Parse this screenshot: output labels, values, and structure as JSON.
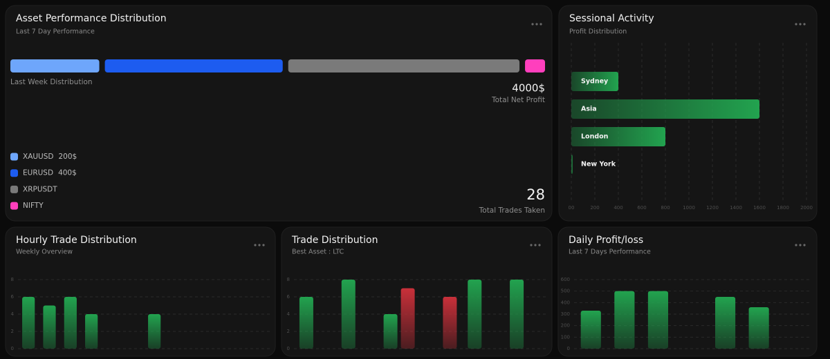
{
  "chart_data": [
    {
      "type": "segmented-bar",
      "title": "Asset Performance Distribution",
      "subtitle": "Last 7 Day Performance",
      "bar_label": "Last Week Distribution",
      "categories": [
        "XAUUSD",
        "EURUSD",
        "XRPUSDT",
        "NIFTY"
      ],
      "values": [
        200,
        400,
        520,
        45
      ],
      "value_labels": [
        "200$",
        "400$",
        null,
        null
      ],
      "colors": [
        "#6ea6fb",
        "#1d5cf0",
        "#7a7a7a",
        "#ff3fbd"
      ],
      "net_profit": {
        "value": 4000,
        "label": "4000$"
      },
      "net_profit_label": "Total Net Profit",
      "trades": 28,
      "trades_label": "Total Trades Taken"
    },
    {
      "type": "hbar",
      "title": "Sessional Activity",
      "subtitle": "Profit Distribution",
      "categories": [
        "Sydney",
        "Asia",
        "London",
        "New York"
      ],
      "values": [
        400,
        1600,
        800,
        10
      ],
      "color": "#22a34f",
      "xlim": [
        0,
        2000
      ],
      "xticks": [
        {
          "value": 0,
          "label": "00"
        },
        200,
        400,
        600,
        800,
        1000,
        1200,
        1400,
        1600,
        1800,
        2000
      ],
      "grid": true
    },
    {
      "type": "bar",
      "title": "Hourly Trade Distribution",
      "subtitle": "Weekly Overview",
      "categories": [
        null,
        null,
        null,
        null,
        null,
        null,
        null,
        null,
        null,
        null,
        null,
        null
      ],
      "values": [
        6,
        5,
        6,
        4,
        0,
        0,
        4,
        0,
        0,
        0,
        0,
        0
      ],
      "color": "#22a34f",
      "ylim": [
        0,
        8
      ],
      "yticks": [
        0,
        2,
        4,
        6,
        8
      ],
      "grid": true
    },
    {
      "type": "grouped-bar",
      "title": "Trade Distribution",
      "subtitle": "Best Asset : LTC",
      "categories": [
        null,
        null,
        null,
        null,
        null,
        null
      ],
      "series": [
        {
          "color": "#22a34f",
          "values": [
            6,
            8,
            4,
            0,
            8,
            8
          ]
        },
        {
          "color": "#c9303a",
          "values": [
            0,
            0,
            7,
            6,
            0,
            0
          ]
        }
      ],
      "ylim": [
        0,
        8
      ],
      "yticks": [
        0,
        2,
        4,
        6,
        8
      ],
      "grid": true
    },
    {
      "type": "bar",
      "title": "Daily Profit/loss",
      "subtitle": "Last 7 Days Performance",
      "categories": [
        null,
        null,
        null,
        null,
        null,
        null,
        null
      ],
      "values": [
        330,
        500,
        500,
        0,
        450,
        360,
        0
      ],
      "color": "#22a34f",
      "ylim": [
        0,
        600
      ],
      "yticks": [
        0,
        100,
        200,
        300,
        400,
        500,
        600
      ],
      "grid": true
    }
  ]
}
